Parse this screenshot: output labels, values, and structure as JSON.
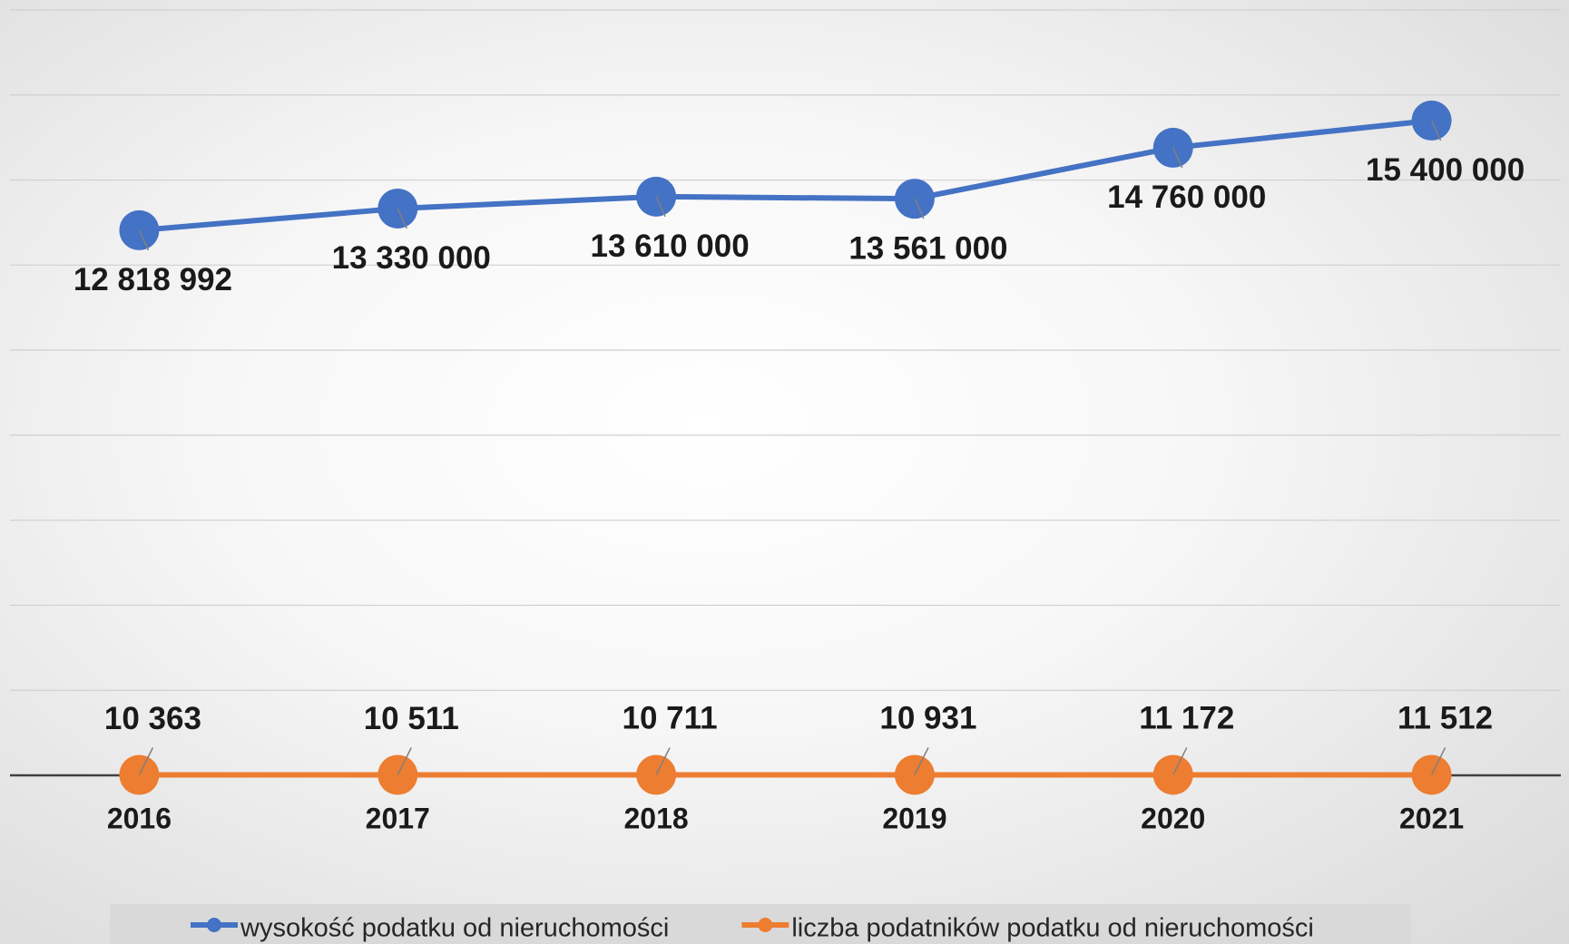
{
  "chart_data": {
    "type": "line",
    "categories": [
      "2016",
      "2017",
      "2018",
      "2019",
      "2020",
      "2021"
    ],
    "series": [
      {
        "name": "wysokość podatku od nieruchomości",
        "color": "#4472c4",
        "values": [
          12818992,
          13330000,
          13610000,
          13561000,
          14760000,
          15400000
        ],
        "value_labels": [
          "12 818 992",
          "13 330 000",
          "13 610 000",
          "13 561 000",
          "14 760 000",
          "15 400 000"
        ]
      },
      {
        "name": "liczba podatników podatku od nieruchomości",
        "color": "#ed7d31",
        "values": [
          10363,
          10511,
          10711,
          10931,
          11172,
          11512
        ],
        "value_labels": [
          "10 363",
          "10 511",
          "10 711",
          "10 931",
          "11 172",
          "11 512"
        ]
      }
    ],
    "ylim": [
      0,
      18000000
    ],
    "yticks": [
      0,
      2000000,
      4000000,
      6000000,
      8000000,
      10000000,
      12000000,
      14000000,
      16000000,
      18000000
    ],
    "grid": true,
    "legend": "bottom"
  }
}
